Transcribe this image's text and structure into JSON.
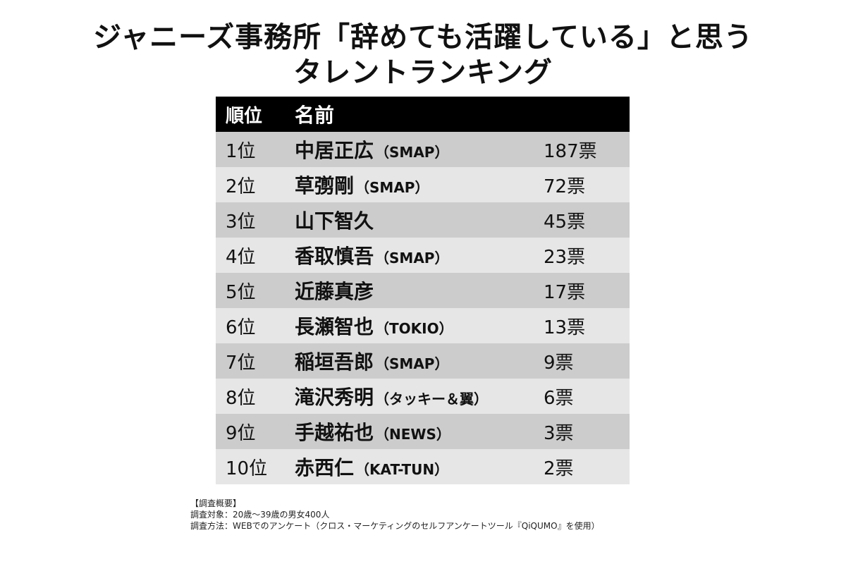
{
  "chart_data": {
    "type": "table",
    "title_line1": "ジャニーズ事務所「辞めても活躍している」と思う",
    "title_line2": "タレントランキング",
    "columns": [
      "順位",
      "名前",
      ""
    ],
    "rows": [
      {
        "rank": "1位",
        "name": "中居正広",
        "group": "（SMAP）",
        "votes": "187票",
        "value": 187
      },
      {
        "rank": "2位",
        "name": "草彅剛",
        "group": "（SMAP）",
        "votes": "72票",
        "value": 72
      },
      {
        "rank": "3位",
        "name": "山下智久",
        "group": "",
        "votes": "45票",
        "value": 45
      },
      {
        "rank": "4位",
        "name": "香取慎吾",
        "group": "（SMAP）",
        "votes": "23票",
        "value": 23
      },
      {
        "rank": "5位",
        "name": "近藤真彦",
        "group": "",
        "votes": "17票",
        "value": 17
      },
      {
        "rank": "6位",
        "name": "長瀬智也",
        "group": "（TOKIO）",
        "votes": "13票",
        "value": 13
      },
      {
        "rank": "7位",
        "name": "稲垣吾郎",
        "group": "（SMAP）",
        "votes": "9票",
        "value": 9
      },
      {
        "rank": "8位",
        "name": "滝沢秀明",
        "group": "（タッキー＆翼）",
        "votes": "6票",
        "value": 6
      },
      {
        "rank": "9位",
        "name": "手越祐也",
        "group": "（NEWS）",
        "votes": "3票",
        "value": 3
      },
      {
        "rank": "10位",
        "name": "赤西仁",
        "group": "（KAT-TUN）",
        "votes": "2票",
        "value": 2
      }
    ]
  },
  "notes": {
    "heading": "【調査概要】",
    "target": "調査対象：20歳～39歳の男女400人",
    "method": "調査方法：WEBでのアンケート（クロス・マーケティングのセルフアンケートツール『QiQUMO』を使用）"
  },
  "colors": {
    "header_bg": "#000000",
    "row_dark": "#cccccc",
    "row_light": "#e6e6e6"
  }
}
